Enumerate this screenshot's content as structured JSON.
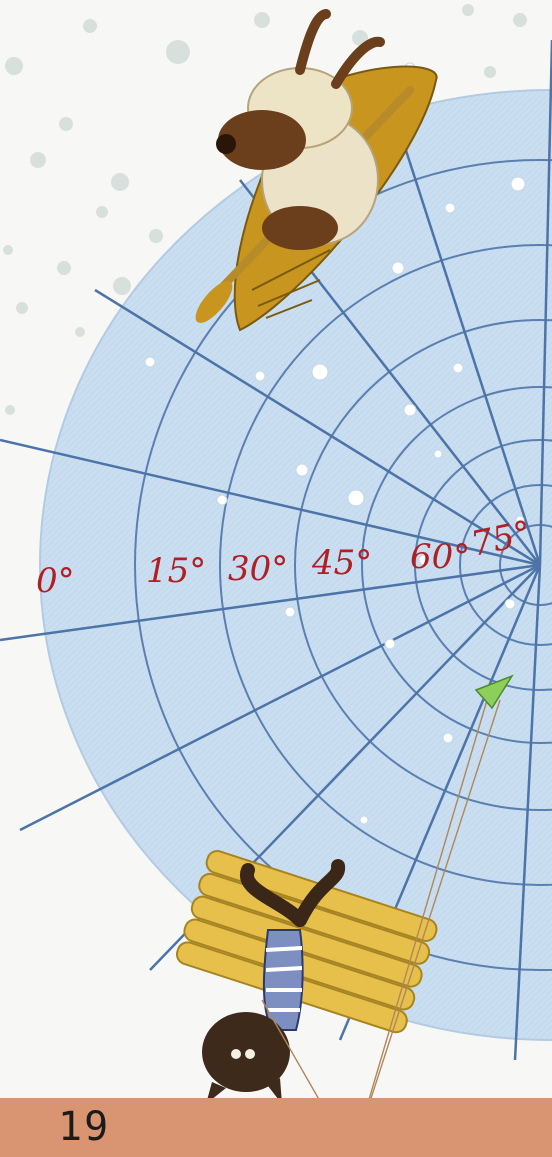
{
  "illustration": {
    "latitude_labels": [
      "0°",
      "15°",
      "30°",
      "45°",
      "60°",
      "75°"
    ]
  },
  "footer": {
    "page_number": "19",
    "bar_color": "#d99471"
  },
  "palette": {
    "globe": "#c9def0",
    "grid_line": "#4d74a8",
    "label_red": "#b01f23",
    "snow": "#d9e2de"
  }
}
